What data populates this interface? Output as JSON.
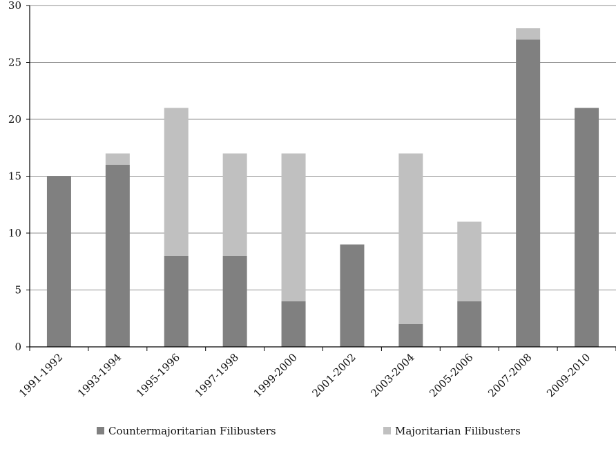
{
  "chart_data": {
    "type": "bar",
    "stacked": true,
    "title": "",
    "xlabel": "",
    "ylabel": "",
    "categories": [
      "1991-1992",
      "1993-1994",
      "1995-1996",
      "1997-1998",
      "1999-2000",
      "2001-2002",
      "2003-2004",
      "2005-2006",
      "2007-2008",
      "2009-2010"
    ],
    "series": [
      {
        "name": "Countermajoritarian Filibusters",
        "color": "#808080",
        "values": [
          15,
          16,
          8,
          8,
          4,
          9,
          2,
          4,
          27,
          21
        ]
      },
      {
        "name": "Majoritarian Filibusters",
        "color": "#c0c0c0",
        "values": [
          0,
          1,
          13,
          9,
          13,
          0,
          15,
          7,
          1,
          0
        ]
      }
    ],
    "ylim": [
      0,
      30
    ],
    "yticks": [
      0,
      5,
      10,
      15,
      20,
      25,
      30
    ],
    "grid": true,
    "legend_position": "bottom"
  }
}
